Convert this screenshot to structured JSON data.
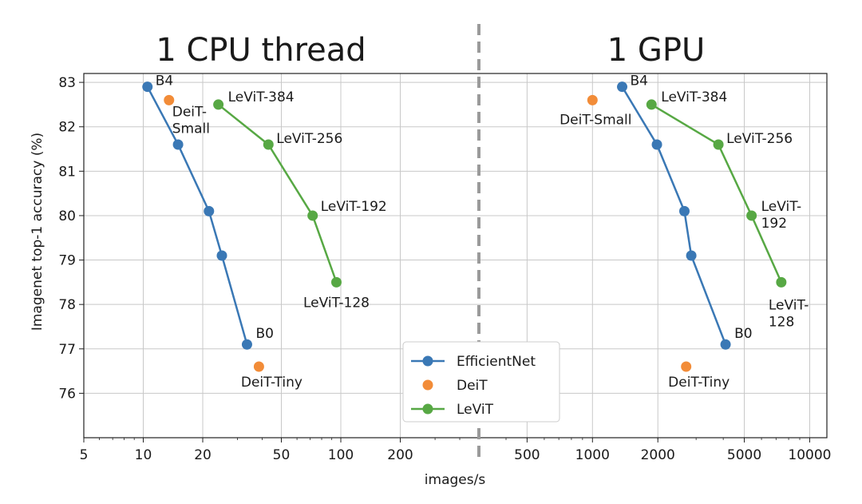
{
  "chart_data": {
    "type": "line",
    "xscale": "log",
    "ylabel": "Imagenet top-1 accuracy (%)",
    "xlabel": "images/s",
    "ylim": [
      75.0,
      83.2
    ],
    "yticks": [
      76,
      77,
      78,
      79,
      80,
      81,
      82,
      83
    ],
    "colors": {
      "EfficientNet": "#3a78b5",
      "DeiT": "#f28c38",
      "LeViT": "#57a844"
    },
    "legend": {
      "position": "bottom-center",
      "entries": [
        "EfficientNet",
        "DeiT",
        "LeViT"
      ]
    },
    "panels": [
      {
        "title": "1 CPU thread",
        "xlim": [
          5,
          500
        ],
        "xticks": [
          5,
          10,
          20,
          50,
          100,
          200
        ],
        "series": [
          {
            "name": "EfficientNet",
            "style": "line",
            "points": [
              {
                "x": 10.5,
                "y": 82.9,
                "label": "B4"
              },
              {
                "x": 15,
                "y": 81.6,
                "label": ""
              },
              {
                "x": 21.5,
                "y": 80.1,
                "label": ""
              },
              {
                "x": 25,
                "y": 79.1,
                "label": ""
              },
              {
                "x": 33.5,
                "y": 77.1,
                "label": "B0"
              }
            ]
          },
          {
            "name": "DeiT",
            "style": "scatter",
            "points": [
              {
                "x": 13.5,
                "y": 82.6,
                "label": "DeiT-\nSmall"
              },
              {
                "x": 38.5,
                "y": 76.6,
                "label": "DeiT-Tiny"
              }
            ]
          },
          {
            "name": "LeViT",
            "style": "line",
            "points": [
              {
                "x": 24,
                "y": 82.5,
                "label": "LeViT-384"
              },
              {
                "x": 43,
                "y": 81.6,
                "label": "LeViT-256"
              },
              {
                "x": 72,
                "y": 80.0,
                "label": "LeViT-192"
              },
              {
                "x": 95,
                "y": 78.5,
                "label": "LeViT-128"
              }
            ]
          }
        ]
      },
      {
        "title": "1 GPU",
        "xlim": [
          300,
          12000
        ],
        "xticks": [
          500,
          1000,
          2000,
          5000,
          10000
        ],
        "series": [
          {
            "name": "EfficientNet",
            "style": "line",
            "points": [
              {
                "x": 1370,
                "y": 82.9,
                "label": "B4"
              },
              {
                "x": 1980,
                "y": 81.6,
                "label": ""
              },
              {
                "x": 2650,
                "y": 80.1,
                "label": ""
              },
              {
                "x": 2850,
                "y": 79.1,
                "label": ""
              },
              {
                "x": 4100,
                "y": 77.1,
                "label": "B0"
              }
            ]
          },
          {
            "name": "DeiT",
            "style": "scatter",
            "points": [
              {
                "x": 1000,
                "y": 82.6,
                "label": "DeiT-Small"
              },
              {
                "x": 2700,
                "y": 76.6,
                "label": "DeiT-Tiny"
              }
            ]
          },
          {
            "name": "LeViT",
            "style": "line",
            "points": [
              {
                "x": 1870,
                "y": 82.5,
                "label": "LeViT-384"
              },
              {
                "x": 3800,
                "y": 81.6,
                "label": "LeViT-256"
              },
              {
                "x": 5400,
                "y": 80.0,
                "label": "LeViT-\n192"
              },
              {
                "x": 7400,
                "y": 78.5,
                "label": "LeViT-\n128"
              }
            ]
          }
        ]
      }
    ]
  }
}
